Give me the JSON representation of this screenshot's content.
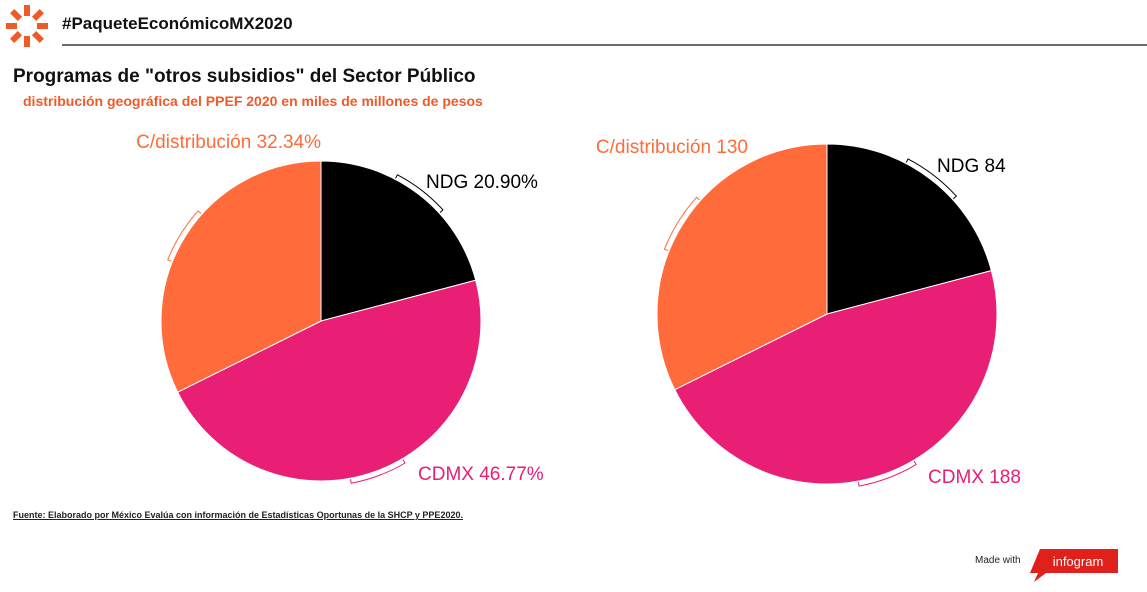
{
  "header": {
    "hashtag": "#PaqueteEconómicoMX2020"
  },
  "title": "Programas de \"otros subsidios\" del Sector Público",
  "subtitle": "distribución geográfica del PPEF 2020 en miles de millones de pesos",
  "source": "Fuente: Elaborado por México Evalúa con información de Estadísticas Oportunas de la SHCP y PPE2020.",
  "footer": {
    "made_with": "Made with",
    "brand": "infogram"
  },
  "colors": {
    "accent": "#f05a28",
    "ndg": "#000000",
    "cdmx": "#e91e75",
    "cdistribucion": "#ff6b3a",
    "brand_red": "#e0201b"
  },
  "chart_data": [
    {
      "type": "pie",
      "slices": [
        {
          "label": "NDG",
          "value": 20.9,
          "display": "NDG 20.90%",
          "color": "#000000"
        },
        {
          "label": "CDMX",
          "value": 46.77,
          "display": "CDMX 46.77%",
          "color": "#e91e75"
        },
        {
          "label": "C/distribución",
          "value": 32.34,
          "display": "C/distribución 32.34%",
          "color": "#ff6b3a"
        }
      ]
    },
    {
      "type": "pie",
      "slices": [
        {
          "label": "NDG",
          "value": 84,
          "display": "NDG 84",
          "color": "#000000"
        },
        {
          "label": "CDMX",
          "value": 188,
          "display": "CDMX 188",
          "color": "#e91e75"
        },
        {
          "label": "C/distribución",
          "value": 130,
          "display": "C/distribución 130",
          "color": "#ff6b3a"
        }
      ]
    }
  ]
}
